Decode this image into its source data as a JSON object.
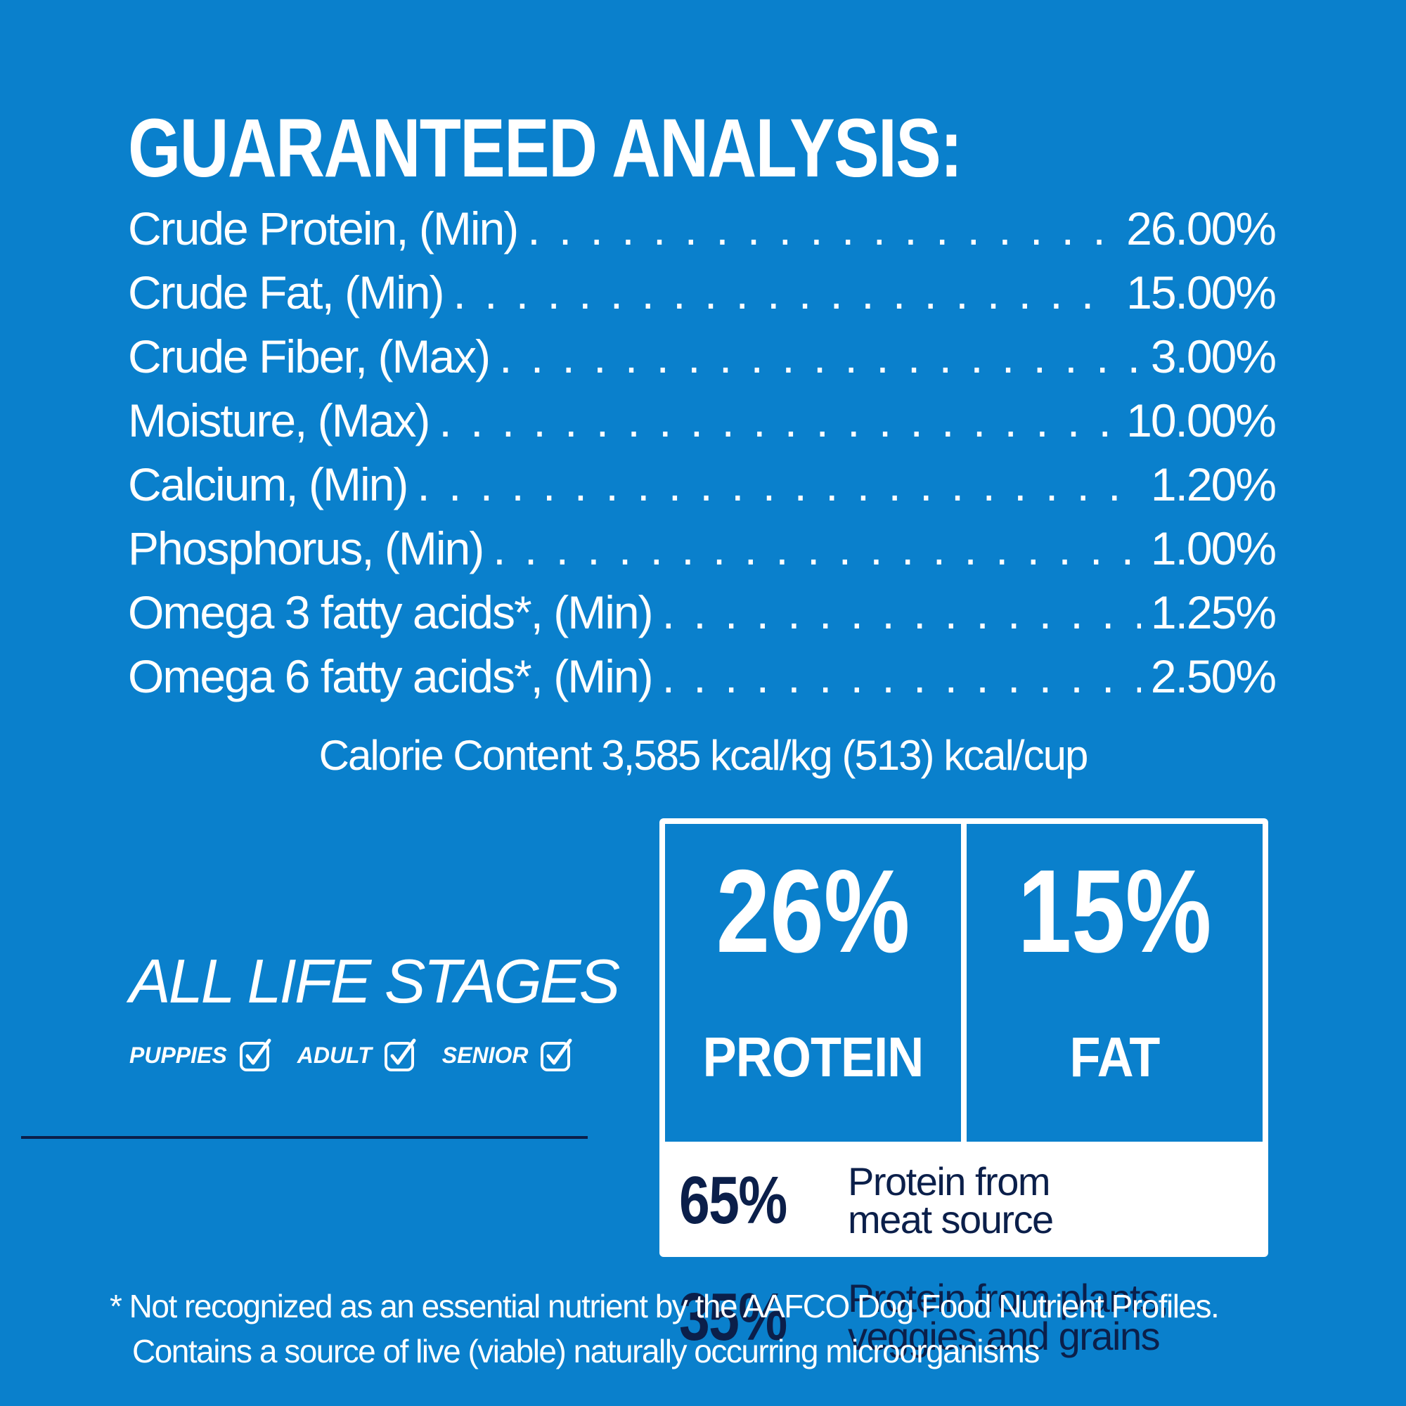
{
  "title": "GUARANTEED ANALYSIS:",
  "analysis": [
    {
      "label": "Crude Protein, (Min)",
      "value": "26.00%"
    },
    {
      "label": "Crude Fat, (Min)",
      "value": "15.00%"
    },
    {
      "label": "Crude Fiber, (Max)",
      "value": "3.00%"
    },
    {
      "label": "Moisture, (Max)",
      "value": "10.00%"
    },
    {
      "label": "Calcium, (Min)",
      "value": "1.20%"
    },
    {
      "label": "Phosphorus, (Min)",
      "value": "1.00%"
    },
    {
      "label": "Omega 3 fatty acids*, (Min)",
      "value": "1.25%"
    },
    {
      "label": "Omega 6 fatty acids*, (Min)",
      "value": "2.50%"
    }
  ],
  "calorie": "Calorie Content 3,585 kcal/kg (513) kcal/cup",
  "life_stages": {
    "title": "ALL LIFE STAGES",
    "stages": [
      "PUPPIES",
      "ADULT",
      "SENIOR"
    ]
  },
  "highlights": {
    "protein": {
      "value": "26%",
      "label": "PROTEIN"
    },
    "fat": {
      "value": "15%",
      "label": "FAT"
    }
  },
  "sources": [
    {
      "pct": "65%",
      "line1": "Protein from",
      "line2": "meat source"
    },
    {
      "pct": "35%",
      "line1": "Protein from plants,",
      "line2": "veggies and grains"
    }
  ],
  "footnote": {
    "line1": "* Not recognized as an essential nutrient by the AAFCO Dog Food Nutrient Profiles.",
    "line2": "Contains a source of live (viable) naturally occurring microorganisms"
  },
  "colors": {
    "background": "#0a80cc",
    "panel": "#ffffff",
    "navy_text": "#0b1f4a"
  }
}
